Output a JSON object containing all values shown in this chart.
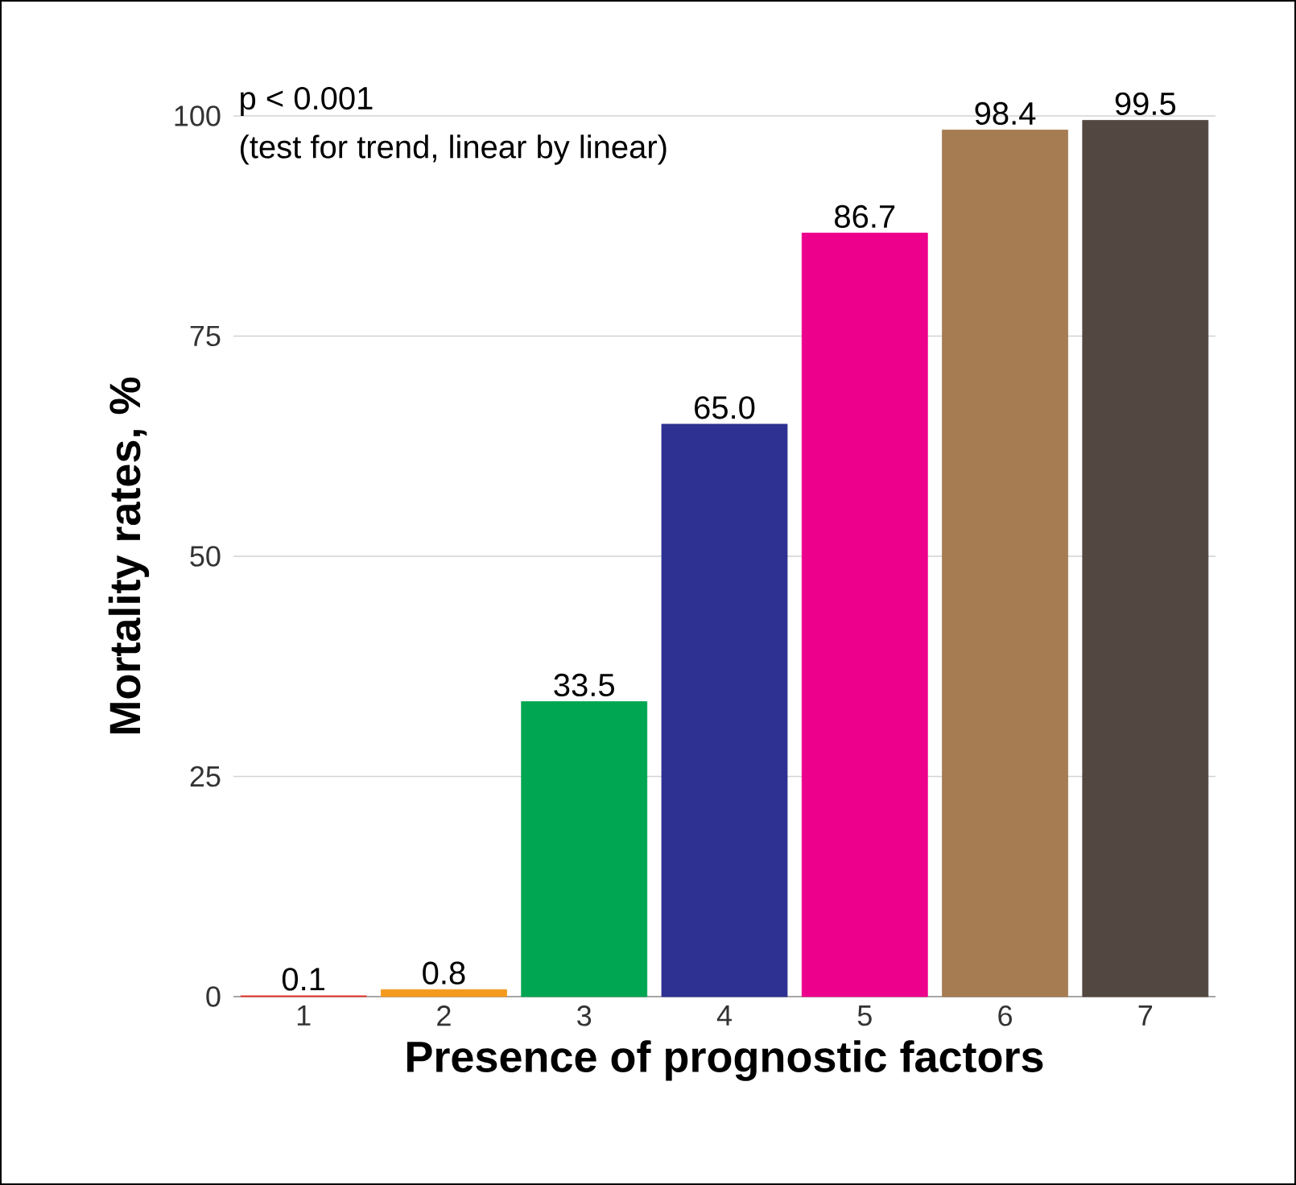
{
  "chart_data": {
    "type": "bar",
    "xlabel": "Presence of prognostic factors",
    "ylabel": "Mortality rates, %",
    "categories": [
      "1",
      "2",
      "3",
      "4",
      "5",
      "6",
      "7"
    ],
    "values": [
      0.1,
      0.8,
      33.5,
      65.0,
      86.7,
      98.4,
      99.5
    ],
    "value_labels": [
      "0.1",
      "0.8",
      "33.5",
      "65.0",
      "86.7",
      "98.4",
      "99.5"
    ],
    "colors": [
      "#e8322a",
      "#f39a1e",
      "#00a651",
      "#2e3192",
      "#ec008c",
      "#a67c52",
      "#534741"
    ],
    "ylim": [
      0,
      100
    ],
    "yticks": [
      0,
      25,
      50,
      75,
      100
    ],
    "grid": "y",
    "annotations": [
      "p < 0.001",
      "(test for trend, linear by linear)"
    ]
  }
}
